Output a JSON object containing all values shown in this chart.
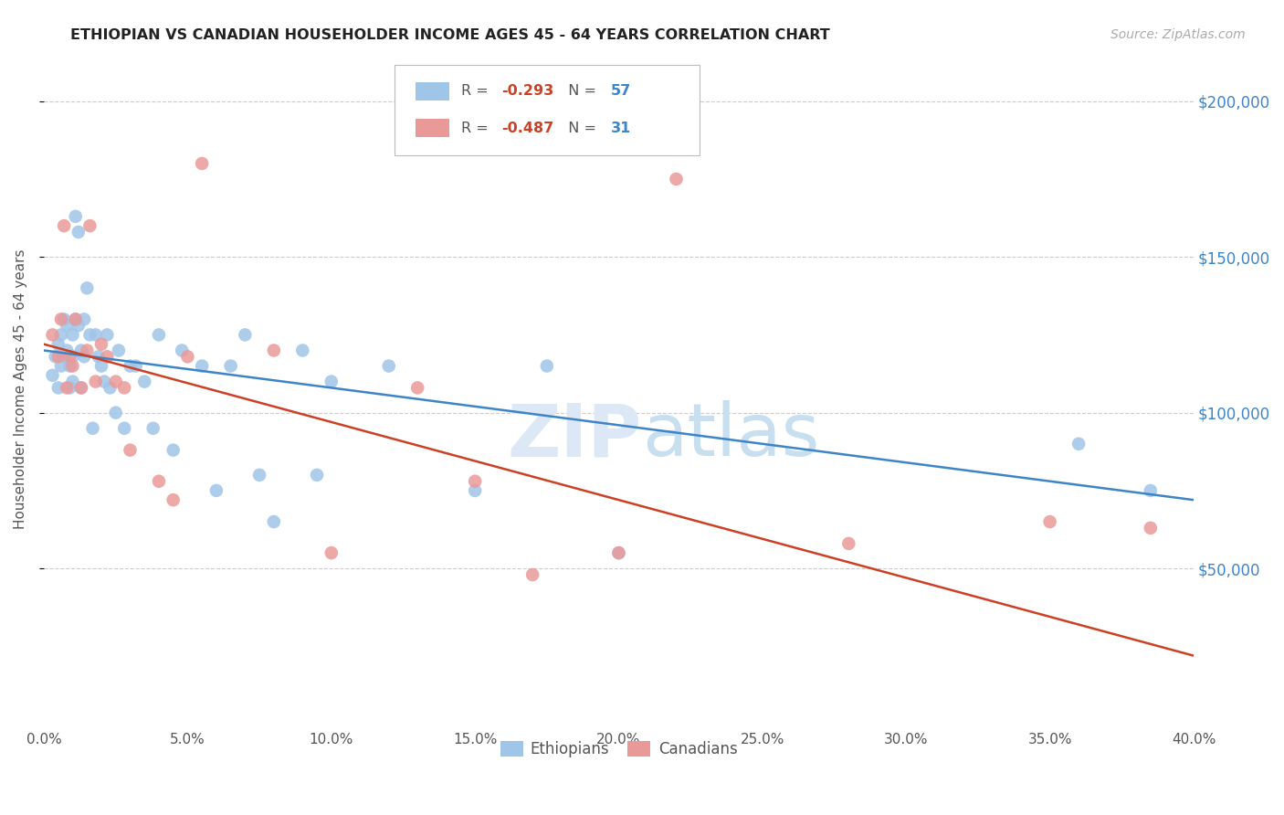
{
  "title": "ETHIOPIAN VS CANADIAN HOUSEHOLDER INCOME AGES 45 - 64 YEARS CORRELATION CHART",
  "source": "Source: ZipAtlas.com",
  "ylabel": "Householder Income Ages 45 - 64 years",
  "ytick_labels": [
    "$50,000",
    "$100,000",
    "$150,000",
    "$200,000"
  ],
  "ytick_vals": [
    50000,
    100000,
    150000,
    200000
  ],
  "ylim": [
    0,
    215000
  ],
  "xlim": [
    0.0,
    0.4
  ],
  "background_color": "#ffffff",
  "blue_color": "#9fc5e8",
  "pink_color": "#ea9999",
  "blue_line_color": "#3d85c8",
  "pink_line_color": "#cc4125",
  "blue_label": "Ethiopians",
  "pink_label": "Canadians",
  "blue_R": "-0.293",
  "blue_N": "57",
  "pink_R": "-0.487",
  "pink_N": "31",
  "blue_scatter_x": [
    0.003,
    0.004,
    0.005,
    0.005,
    0.006,
    0.006,
    0.007,
    0.007,
    0.008,
    0.008,
    0.009,
    0.009,
    0.01,
    0.01,
    0.01,
    0.011,
    0.011,
    0.012,
    0.012,
    0.013,
    0.013,
    0.014,
    0.014,
    0.015,
    0.016,
    0.017,
    0.018,
    0.019,
    0.02,
    0.021,
    0.022,
    0.023,
    0.025,
    0.026,
    0.028,
    0.03,
    0.032,
    0.035,
    0.038,
    0.04,
    0.045,
    0.048,
    0.055,
    0.06,
    0.065,
    0.07,
    0.075,
    0.08,
    0.09,
    0.095,
    0.1,
    0.12,
    0.15,
    0.175,
    0.2,
    0.36,
    0.385
  ],
  "blue_scatter_y": [
    112000,
    118000,
    122000,
    108000,
    125000,
    115000,
    130000,
    118000,
    128000,
    120000,
    115000,
    108000,
    125000,
    118000,
    110000,
    163000,
    130000,
    158000,
    128000,
    120000,
    108000,
    130000,
    118000,
    140000,
    125000,
    95000,
    125000,
    118000,
    115000,
    110000,
    125000,
    108000,
    100000,
    120000,
    95000,
    115000,
    115000,
    110000,
    95000,
    125000,
    88000,
    120000,
    115000,
    75000,
    115000,
    125000,
    80000,
    65000,
    120000,
    80000,
    110000,
    115000,
    75000,
    115000,
    55000,
    90000,
    75000
  ],
  "pink_scatter_x": [
    0.003,
    0.005,
    0.006,
    0.007,
    0.008,
    0.009,
    0.01,
    0.011,
    0.013,
    0.015,
    0.016,
    0.018,
    0.02,
    0.022,
    0.025,
    0.028,
    0.03,
    0.04,
    0.045,
    0.05,
    0.055,
    0.08,
    0.1,
    0.13,
    0.15,
    0.17,
    0.2,
    0.22,
    0.28,
    0.35,
    0.385
  ],
  "pink_scatter_y": [
    125000,
    118000,
    130000,
    160000,
    108000,
    118000,
    115000,
    130000,
    108000,
    120000,
    160000,
    110000,
    122000,
    118000,
    110000,
    108000,
    88000,
    78000,
    72000,
    118000,
    180000,
    120000,
    55000,
    108000,
    78000,
    48000,
    55000,
    175000,
    58000,
    65000,
    63000
  ],
  "blue_line_x0": 0.0,
  "blue_line_x1": 0.4,
  "blue_line_y0": 120000,
  "blue_line_y1": 72000,
  "pink_line_x0": 0.0,
  "pink_line_x1": 0.4,
  "pink_line_y0": 122000,
  "pink_line_y1": 22000
}
